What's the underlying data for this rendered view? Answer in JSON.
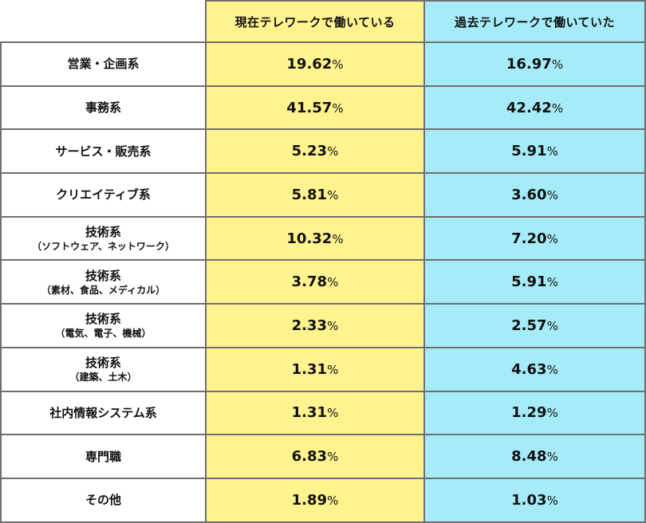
{
  "table": {
    "columns": [
      "",
      "現在テレワークで働いている",
      "過去テレワークで働いていた"
    ],
    "rows": [
      {
        "label": "営業・企画系",
        "sub": "",
        "current": "19.62",
        "past": "16.97"
      },
      {
        "label": "事務系",
        "sub": "",
        "current": "41.57",
        "past": "42.42"
      },
      {
        "label": "サービス・販売系",
        "sub": "",
        "current": "5.23",
        "past": "5.91"
      },
      {
        "label": "クリエイティブ系",
        "sub": "",
        "current": "5.81",
        "past": "3.60"
      },
      {
        "label": "技術系",
        "sub": "（ソフトウェア、ネットワーク）",
        "current": "10.32",
        "past": "7.20"
      },
      {
        "label": "技術系",
        "sub": "（素材、食品、メディカル）",
        "current": "3.78",
        "past": "5.91"
      },
      {
        "label": "技術系",
        "sub": "（電気、電子、機械）",
        "current": "2.33",
        "past": "2.57"
      },
      {
        "label": "技術系",
        "sub": "（建築、土木）",
        "current": "1.31",
        "past": "4.63"
      },
      {
        "label": "社内情報システム系",
        "sub": "",
        "current": "1.31",
        "past": "1.29"
      },
      {
        "label": "専門職",
        "sub": "",
        "current": "6.83",
        "past": "8.48"
      },
      {
        "label": "その他",
        "sub": "",
        "current": "1.89",
        "past": "1.03"
      }
    ],
    "percent_symbol": "%",
    "colors": {
      "current_column_bg": "#fff38f",
      "past_column_bg": "#a6ecf8",
      "border": "#6f6f6f"
    }
  }
}
